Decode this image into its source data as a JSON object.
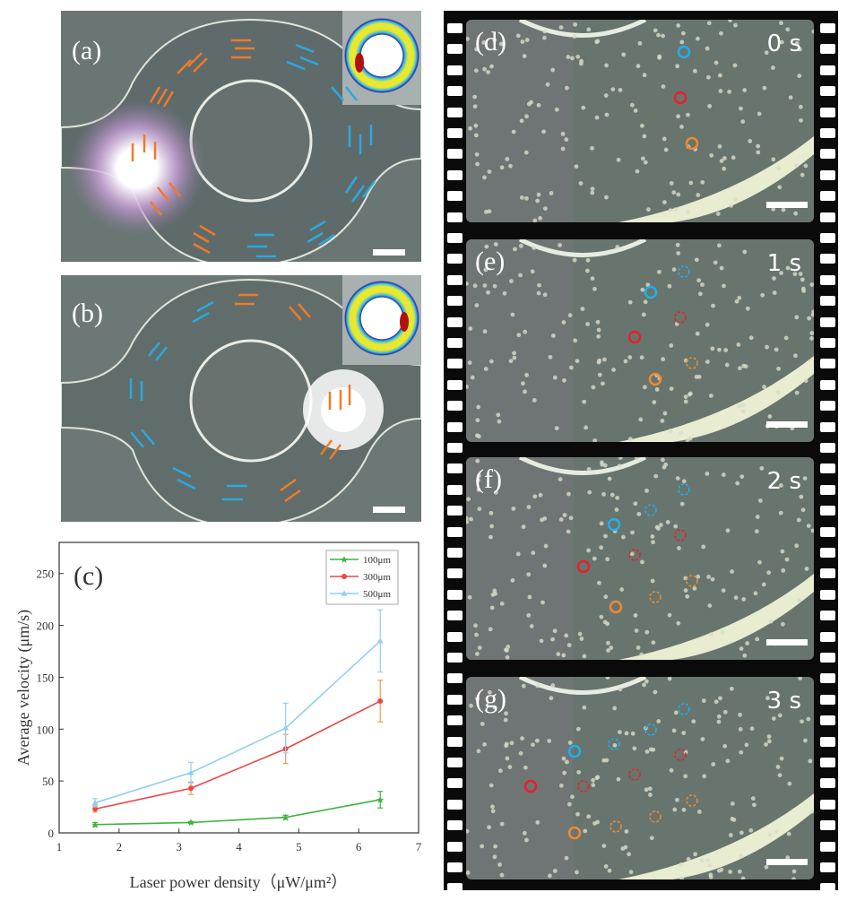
{
  "panels": {
    "a": {
      "label": "(a)"
    },
    "b": {
      "label": "(b)"
    },
    "d": {
      "label": "(d)",
      "time": "0 s"
    },
    "e": {
      "label": "(e)",
      "time": "1 s"
    },
    "f": {
      "label": "(f)",
      "time": "2 s"
    },
    "g": {
      "label": "(g)",
      "time": "3 s"
    }
  },
  "colors": {
    "orange_arrow": "#f07a2a",
    "blue_arrow": "#2aa9e0",
    "marker_blue": "#1fb0ea",
    "marker_red": "#e8202a",
    "marker_orange": "#f08a30"
  },
  "chart_data": {
    "type": "line",
    "panel_label": "(c)",
    "title": "",
    "xlabel": "Laser power density（μW/μm²）",
    "ylabel": "Average velocity (μm/s)",
    "xlim": [
      1,
      7
    ],
    "ylim": [
      0,
      280
    ],
    "xticks": [
      "1",
      "2",
      "3",
      "4",
      "5",
      "6",
      "7"
    ],
    "yticks": [
      "0",
      "50",
      "100",
      "150",
      "200",
      "250"
    ],
    "x": [
      1.6,
      3.2,
      4.78,
      6.36
    ],
    "legend_position": "top-right",
    "series": [
      {
        "name": "100μm",
        "color": "#3fb33f",
        "marker": "star",
        "values": [
          8,
          10,
          15,
          32
        ],
        "errors": [
          2,
          1,
          2,
          8
        ]
      },
      {
        "name": "300μm",
        "color": "#ee4545",
        "error_color": "#f39a4a",
        "marker": "circle",
        "values": [
          23,
          43,
          81,
          127
        ],
        "errors": [
          3,
          6,
          14,
          20
        ]
      },
      {
        "name": "500μm",
        "color": "#8fd0f0",
        "marker": "triangle",
        "values": [
          29,
          58,
          101,
          185
        ],
        "errors": [
          4,
          10,
          24,
          30
        ]
      }
    ]
  }
}
